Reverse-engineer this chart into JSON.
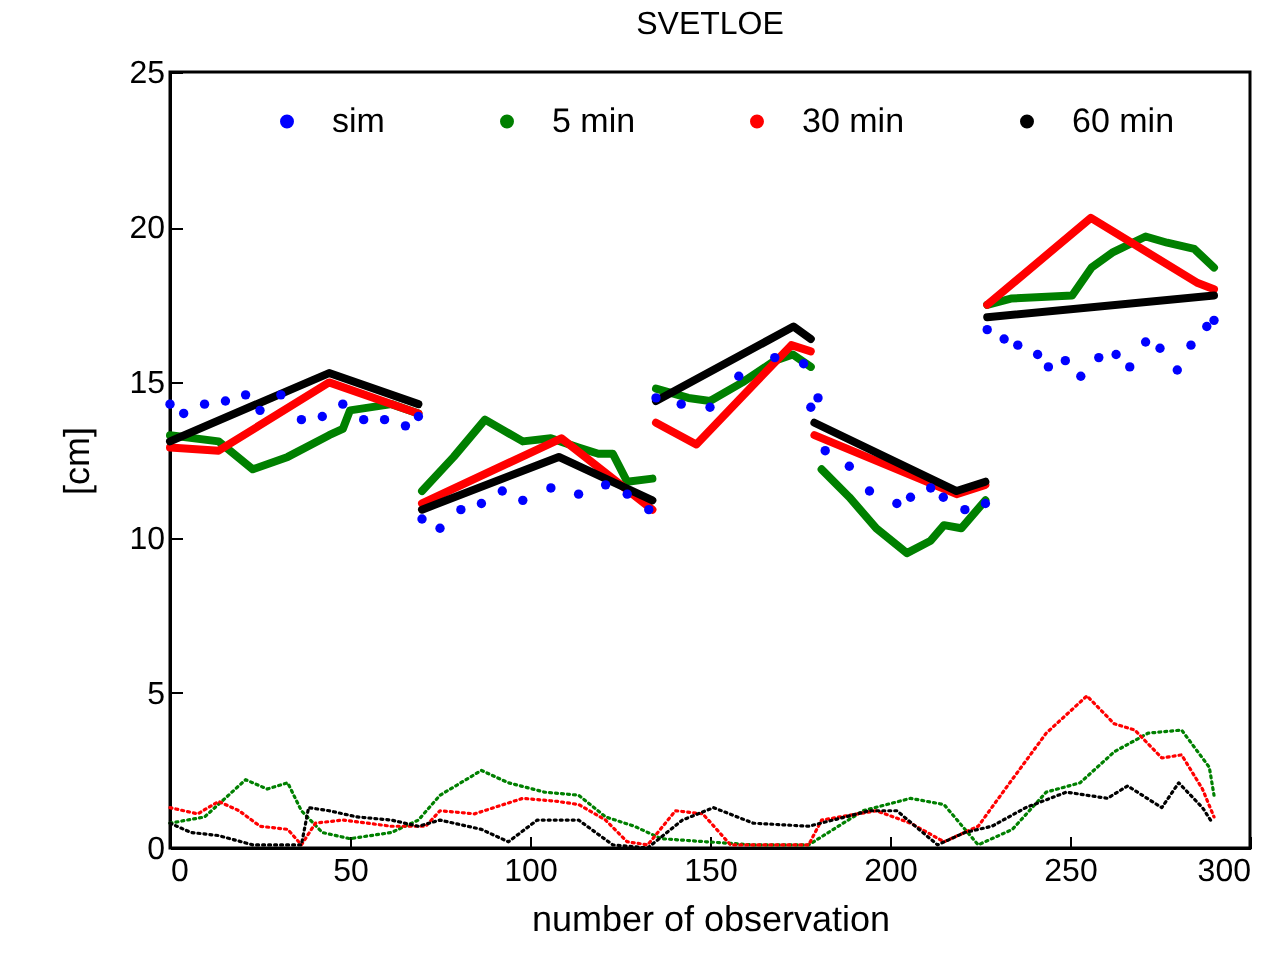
{
  "chart_data": {
    "type": "line",
    "title": "SVETLOE",
    "xlabel": "number of observation",
    "ylabel": "[cm]",
    "xlim": [
      0,
      300
    ],
    "ylim": [
      0,
      25
    ],
    "xticks": [
      0,
      50,
      100,
      150,
      200,
      250,
      300
    ],
    "yticks": [
      0,
      5,
      10,
      15,
      20,
      25
    ],
    "grid": false,
    "legend": "top",
    "series": [
      {
        "name": "sim",
        "type": "scatter",
        "marker": "circle",
        "color": "#0000ff",
        "x": [
          0,
          3.8,
          9.6,
          15.4,
          21,
          25,
          30.8,
          36.5,
          42.3,
          48,
          53.8,
          59.6,
          65.4,
          69,
          70,
          75,
          80.8,
          86.5,
          92.3,
          98,
          105.8,
          113.5,
          121,
          127,
          133,
          135,
          142,
          150,
          158,
          168,
          176,
          178,
          180,
          182,
          188.7,
          194.3,
          201.9,
          205.7,
          211.3,
          214.8,
          220.8,
          226.5,
          227,
          231.7,
          235.5,
          241,
          244,
          248.7,
          253,
          258,
          262.8,
          266.6,
          271,
          275,
          279.8,
          283.6,
          288,
          290
        ],
        "values": [
          14.3,
          14.0,
          14.3,
          14.4,
          14.6,
          14.1,
          14.6,
          13.8,
          13.9,
          14.3,
          13.8,
          13.8,
          13.6,
          13.9,
          10.6,
          10.3,
          10.9,
          11.1,
          11.5,
          11.2,
          11.6,
          11.4,
          11.7,
          11.4,
          10.9,
          14.5,
          14.3,
          14.2,
          15.2,
          15.8,
          15.6,
          14.2,
          14.5,
          12.8,
          12.3,
          11.5,
          11.1,
          11.3,
          11.6,
          11.3,
          10.9,
          11.1,
          16.7,
          16.4,
          16.2,
          15.9,
          15.5,
          15.7,
          15.2,
          15.8,
          15.9,
          15.5,
          16.3,
          16.1,
          15.4,
          16.2,
          16.8,
          17.0
        ]
      },
      {
        "name": "5 min",
        "color": "#008000",
        "x": [
          0,
          13.5,
          23,
          32.7,
          44.2,
          48,
          50,
          61.5,
          69,
          69.5,
          70,
          78.8,
          87.5,
          98,
          105.8,
          113.5,
          119,
          123,
          127,
          134,
          134.5,
          135,
          144,
          150,
          159,
          168,
          173,
          178,
          179.5,
          181,
          188.7,
          196.2,
          204.7,
          211.3,
          215,
          219.8,
          226.5,
          226.8,
          227,
          233.6,
          250.6,
          256,
          262,
          271,
          277,
          284.5,
          290
        ],
        "values": [
          13.3,
          13.1,
          12.2,
          12.6,
          13.3,
          13.5,
          14.1,
          14.3,
          14.0,
          null,
          11.5,
          12.6,
          13.8,
          13.1,
          13.2,
          12.9,
          12.7,
          12.7,
          11.8,
          11.9,
          null,
          14.8,
          14.5,
          14.4,
          15.0,
          15.7,
          15.9,
          15.5,
          null,
          12.2,
          11.3,
          10.3,
          9.5,
          9.9,
          10.4,
          10.3,
          11.2,
          null,
          17.5,
          17.7,
          17.8,
          18.7,
          19.2,
          19.7,
          19.5,
          19.3,
          18.7
        ]
      },
      {
        "name": "30 min",
        "color": "#ff0000",
        "x": [
          0,
          13.5,
          44.2,
          69,
          69.5,
          70,
          108.7,
          134,
          134.5,
          135,
          146.2,
          172.6,
          178,
          178.5,
          179,
          218.5,
          226.5,
          226.8,
          227,
          255.8,
          285.5,
          290
        ],
        "values": [
          12.9,
          12.8,
          15.0,
          14.0,
          null,
          11.1,
          13.2,
          10.9,
          null,
          13.7,
          13.0,
          16.2,
          16.0,
          null,
          13.3,
          11.4,
          11.7,
          null,
          17.5,
          20.3,
          18.2,
          18.0
        ]
      },
      {
        "name": "60 min",
        "color": "#000000",
        "x": [
          0,
          44.2,
          69,
          69.5,
          70,
          108,
          134,
          134.5,
          135,
          173.2,
          178,
          178.5,
          179,
          218.5,
          226.5,
          226.8,
          227,
          290
        ],
        "values": [
          13.1,
          15.3,
          14.3,
          null,
          10.9,
          12.6,
          11.2,
          null,
          14.4,
          16.8,
          16.4,
          null,
          13.7,
          11.5,
          11.8,
          null,
          17.1,
          17.8
        ]
      },
      {
        "color": "#008000",
        "line_style": "dotted",
        "x": [
          0,
          9.6,
          21,
          27,
          32.7,
          36.5,
          42.3,
          50,
          61.5,
          69,
          75,
          86.5,
          94,
          104,
          113.5,
          121,
          129,
          136.5,
          149,
          162,
          177.4,
          192.5,
          205.7,
          215,
          224.5,
          234,
          243.4,
          252.8,
          262.3,
          271.7,
          281,
          288.7,
          290
        ],
        "values": [
          0.8,
          1.0,
          2.2,
          1.9,
          2.1,
          1.2,
          0.5,
          0.3,
          0.5,
          0.9,
          1.7,
          2.5,
          2.1,
          1.8,
          1.7,
          1.0,
          0.7,
          0.3,
          0.2,
          0.1,
          0.1,
          1.2,
          1.6,
          1.4,
          0.1,
          0.6,
          1.8,
          2.1,
          3.1,
          3.7,
          3.8,
          2.6,
          1.7
        ]
      },
      {
        "color": "#ff0000",
        "line_style": "dotted",
        "x": [
          0,
          7.7,
          13.5,
          19.2,
          25,
          32.7,
          36.5,
          40.4,
          48,
          61.5,
          71,
          75,
          84.6,
          98,
          107.7,
          113.5,
          121,
          127,
          132.7,
          140.4,
          148,
          155.7,
          177.4,
          181,
          196.2,
          205.7,
          215,
          224.5,
          232,
          243.4,
          254.7,
          262.3,
          268,
          275.5,
          281,
          286.8,
          290
        ],
        "values": [
          1.3,
          1.1,
          1.5,
          1.2,
          0.7,
          0.6,
          0.1,
          0.8,
          0.9,
          0.7,
          0.7,
          1.2,
          1.1,
          1.6,
          1.5,
          1.4,
          0.9,
          0.2,
          0.1,
          1.2,
          1.1,
          0.1,
          0.1,
          0.9,
          1.2,
          0.8,
          0.2,
          0.7,
          1.9,
          3.7,
          4.9,
          4.0,
          3.8,
          2.9,
          3.0,
          1.9,
          1.0
        ]
      },
      {
        "color": "#000000",
        "line_style": "dotted",
        "x": [
          0,
          5.8,
          13.5,
          23,
          36.5,
          38.5,
          44.2,
          52,
          61.5,
          69,
          75,
          86.5,
          94,
          102,
          113.5,
          123,
          132.7,
          142.3,
          151,
          162,
          177.4,
          194.3,
          201.9,
          213.2,
          220.8,
          228.3,
          237.7,
          249,
          260.4,
          266,
          275.5,
          280.2,
          286.8,
          289.6
        ],
        "values": [
          0.8,
          0.5,
          0.4,
          0.1,
          0.1,
          1.3,
          1.2,
          1.0,
          0.9,
          0.7,
          0.9,
          0.6,
          0.2,
          0.9,
          0.9,
          0.1,
          0.0,
          0.9,
          1.3,
          0.8,
          0.7,
          1.2,
          1.2,
          0.1,
          0.5,
          0.7,
          1.3,
          1.8,
          1.6,
          2.0,
          1.3,
          2.1,
          1.3,
          0.8
        ]
      }
    ]
  }
}
